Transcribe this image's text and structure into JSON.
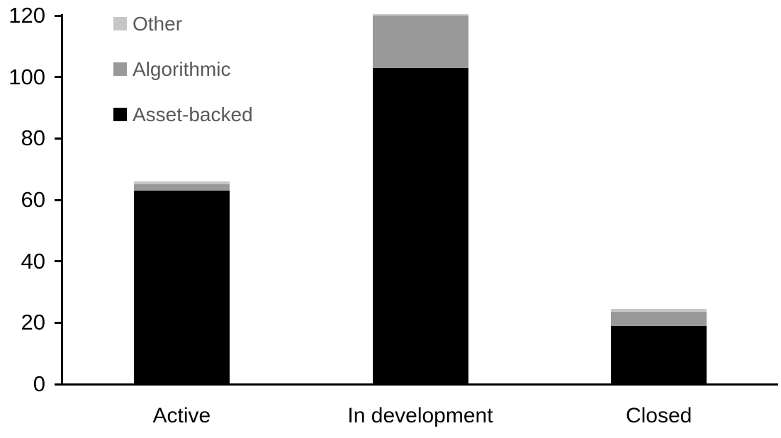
{
  "chart_data": {
    "type": "bar",
    "stacked": true,
    "title": "",
    "xlabel": "",
    "ylabel": "",
    "categories": [
      "Active",
      "In development",
      "Closed"
    ],
    "series": [
      {
        "name": "Asset-backed",
        "color": "#000000",
        "values": [
          63,
          103,
          19
        ]
      },
      {
        "name": "Algorithmic",
        "color": "#999999",
        "values": [
          2,
          17,
          4.5
        ]
      },
      {
        "name": "Other",
        "color": "#c6c6c6",
        "values": [
          1,
          0.5,
          1
        ]
      }
    ],
    "totals": [
      66,
      120.5,
      24.5
    ],
    "ylim": [
      0,
      120
    ],
    "yticks": [
      0,
      20,
      40,
      60,
      80,
      100,
      120
    ],
    "grid": false,
    "legend": {
      "position": "top-left",
      "order": [
        "Other",
        "Algorithmic",
        "Asset-backed"
      ]
    }
  },
  "colors": {
    "background": "#ffffff",
    "axis": "#000000",
    "tick_label_text": "#000000",
    "category_label_text": "#000000",
    "legend_text": "#595959"
  }
}
